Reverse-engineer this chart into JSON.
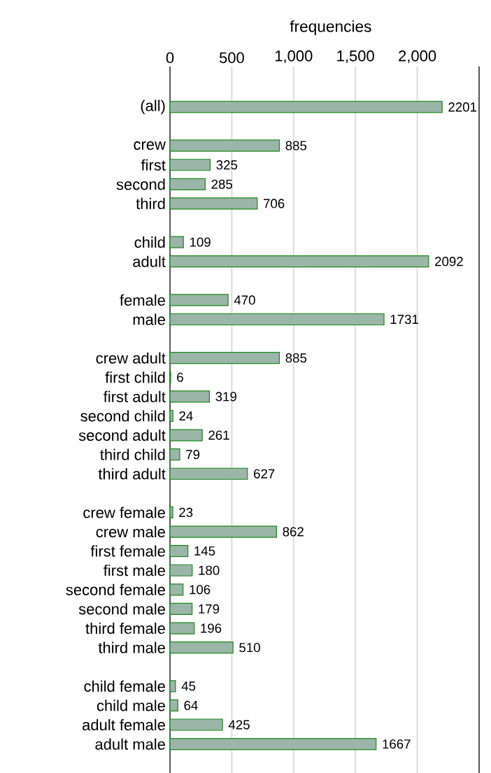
{
  "chart_data": {
    "type": "bar",
    "orientation": "horizontal",
    "xlabel": "frequencies",
    "categories": [
      "(all)",
      null,
      "crew",
      "first",
      "second",
      "third",
      null,
      "child",
      "adult",
      null,
      "female",
      "male",
      null,
      "crew adult",
      "first child",
      "first adult",
      "second child",
      "second adult",
      "third child",
      "third adult",
      null,
      "crew female",
      "crew male",
      "first female",
      "first male",
      "second female",
      "second male",
      "third female",
      "third male",
      null,
      "child female",
      "child male",
      "adult female",
      "adult male"
    ],
    "values": [
      2201,
      null,
      885,
      325,
      285,
      706,
      null,
      109,
      2092,
      null,
      470,
      1731,
      null,
      885,
      6,
      319,
      24,
      261,
      79,
      627,
      null,
      23,
      862,
      145,
      180,
      106,
      179,
      196,
      510,
      null,
      45,
      64,
      425,
      1667
    ],
    "color": "#9bb5a8",
    "xlim": [
      0,
      2500
    ],
    "xticks": [
      0,
      500,
      {
        "value": 1000,
        "label": "1,000"
      },
      {
        "value": 1500,
        "label": "1,500"
      },
      {
        "value": 2000,
        "label": "2,000"
      }
    ],
    "grid": "x",
    "data_labels": true
  }
}
